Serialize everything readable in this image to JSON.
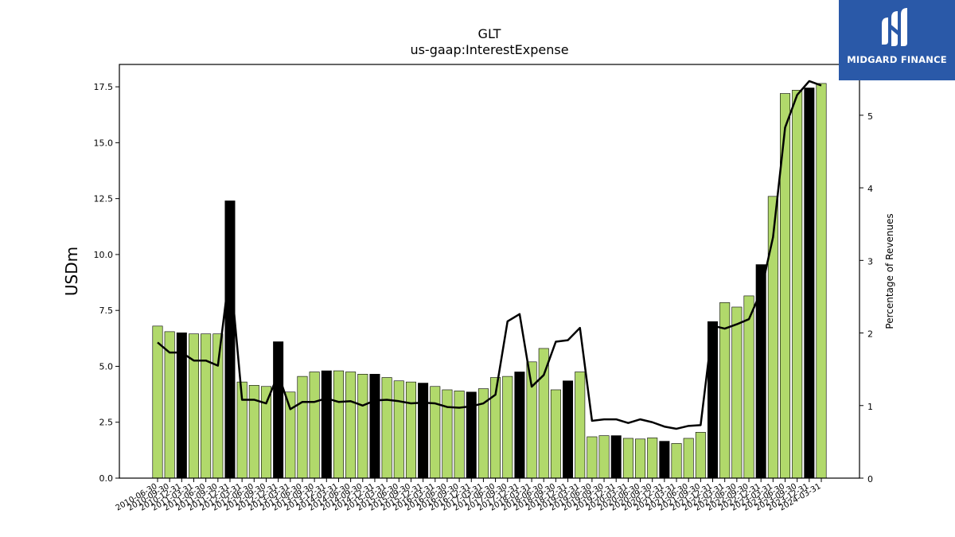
{
  "chart_data": {
    "type": "bar",
    "title": "GLT",
    "subtitle": "us-gaap:InterestExpense",
    "ylabel": "USDm",
    "y2label": "Percentage of Revenues",
    "ylim": [
      0,
      18.5
    ],
    "y2lim": [
      0,
      5.7
    ],
    "yticks": [
      "0.0",
      "2.5",
      "5.0",
      "7.5",
      "10.0",
      "12.5",
      "15.0",
      "17.5"
    ],
    "y2ticks": [
      "0",
      "1",
      "2",
      "3",
      "4",
      "5"
    ],
    "categories": [
      "2010-06-30",
      "2010-09-30",
      "2010-12-31",
      "2011-03-31",
      "2011-06-30",
      "2011-09-30",
      "2011-12-31",
      "2012-03-31",
      "2012-06-30",
      "2012-09-30",
      "2012-12-31",
      "2013-03-31",
      "2013-06-30",
      "2013-09-30",
      "2013-12-31",
      "2014-03-31",
      "2014-06-30",
      "2014-09-30",
      "2014-12-31",
      "2015-03-31",
      "2015-06-30",
      "2015-09-30",
      "2015-12-31",
      "2016-03-31",
      "2016-06-30",
      "2016-09-30",
      "2016-12-31",
      "2017-03-31",
      "2017-06-30",
      "2017-09-30",
      "2017-12-31",
      "2018-03-31",
      "2018-06-30",
      "2018-09-30",
      "2018-12-31",
      "2019-03-31",
      "2019-06-30",
      "2019-09-30",
      "2019-12-31",
      "2020-03-31",
      "2020-06-30",
      "2020-09-30",
      "2020-12-31",
      "2021-03-31",
      "2021-06-30",
      "2021-09-30",
      "2021-12-31",
      "2022-03-31",
      "2022-06-30",
      "2022-09-30",
      "2022-12-31",
      "2023-03-31",
      "2023-06-30",
      "2023-09-30",
      "2023-12-31",
      "2024-03-31"
    ],
    "visible_xtick_labels": [
      "2010-06-30",
      "2010-09-30",
      "2010-12-31",
      "2011-03-31",
      "2011-06-30",
      "2011-09-30",
      "2011-12-31",
      "2012-03-31",
      "2012-06-30",
      "2012-09-30",
      "2012-12-31",
      "2013-03-31",
      "2013-06-30",
      "2013-09-30",
      "2013-12-31",
      "2014-03-31",
      "2014-06-30",
      "2014-09-30",
      "2014-12-31",
      "2015-03-31",
      "2015-06-30",
      "2015-09-30",
      "2015-12-31",
      "2016-03-31",
      "2016-06-30",
      "2016-09-30",
      "2016-12-31",
      "2017-03-31",
      "2017-06-30",
      "2017-09-30",
      "2017-12-31",
      "2018-03-31",
      "2018-06-30",
      "2018-09-30",
      "2018-12-31",
      "2019-03-31",
      "2019-06-30",
      "2019-09-30",
      "2019-12-31",
      "2020-03-31",
      "2020-06-30",
      "2020-09-30",
      "2020-12-31",
      "2021-03-31",
      "2021-06-30",
      "2021-09-30",
      "2021-12-31",
      "2022-03-31",
      "2022-06-30",
      "2022-09-30",
      "2022-12-31",
      "2023-03-31",
      "2023-06-30",
      "2023-09-30",
      "2023-12-31",
      "2024-03-31"
    ],
    "values": [
      6.8,
      6.55,
      6.5,
      6.45,
      6.45,
      6.45,
      12.4,
      4.3,
      4.15,
      4.1,
      6.1,
      3.85,
      4.55,
      4.75,
      4.8,
      4.8,
      4.75,
      4.65,
      4.65,
      4.5,
      4.35,
      4.3,
      4.25,
      4.1,
      3.95,
      3.9,
      3.85,
      4.0,
      4.5,
      4.55,
      4.75,
      5.2,
      5.8,
      3.95,
      4.35,
      4.75,
      1.85,
      1.9,
      1.9,
      1.78,
      1.75,
      1.8,
      1.65,
      1.55,
      1.78,
      2.05,
      7.0,
      7.85,
      7.65,
      8.15,
      9.55,
      12.6,
      17.2,
      17.35,
      17.45,
      17.65
    ],
    "bar_highlight": [
      false,
      false,
      true,
      false,
      false,
      false,
      true,
      false,
      false,
      false,
      true,
      false,
      false,
      false,
      true,
      false,
      false,
      false,
      true,
      false,
      false,
      false,
      true,
      false,
      false,
      false,
      true,
      false,
      false,
      false,
      true,
      false,
      false,
      false,
      true,
      false,
      false,
      false,
      true,
      false,
      false,
      false,
      true,
      false,
      false,
      false,
      true,
      false,
      false,
      false,
      true,
      false,
      false,
      false,
      true,
      false
    ],
    "line_series": {
      "axis": "right",
      "values": [
        1.87,
        1.73,
        1.73,
        1.62,
        1.62,
        1.55,
        2.9,
        1.08,
        1.08,
        1.03,
        1.43,
        0.95,
        1.05,
        1.05,
        1.1,
        1.05,
        1.06,
        1.0,
        1.07,
        1.08,
        1.06,
        1.03,
        1.04,
        1.03,
        0.98,
        0.97,
        0.99,
        1.03,
        1.15,
        2.16,
        2.26,
        1.26,
        1.42,
        1.88,
        1.9,
        2.07,
        0.79,
        0.81,
        0.81,
        0.76,
        0.81,
        0.77,
        0.71,
        0.68,
        0.72,
        0.73,
        2.1,
        2.06,
        2.12,
        2.19,
        2.57,
        3.32,
        4.83,
        5.28,
        5.47,
        5.41
      ]
    },
    "colors": {
      "bar": "#b1d96b",
      "bar_highlight": "#000000",
      "line": "#000000"
    },
    "grid": false,
    "legend": "none"
  },
  "logo": {
    "text": "MIDGARD FINANCE"
  }
}
